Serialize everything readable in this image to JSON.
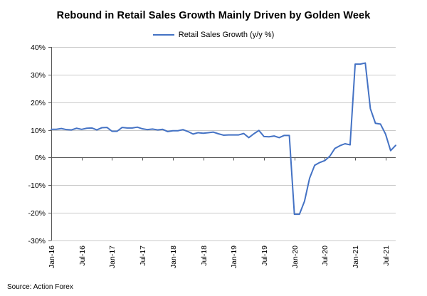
{
  "title": "Rebound in Retail Sales Growth Mainly Driven by Golden Week",
  "legend": {
    "label": "Retail Sales Growth (y/y %)"
  },
  "source": "Source: Action Forex",
  "chart_data": {
    "type": "line",
    "title": "Rebound in Retail Sales Growth Mainly Driven by Golden Week",
    "series_name": "Retail Sales Growth (y/y %)",
    "line_color": "#4472C4",
    "xlabel": "",
    "ylabel": "",
    "ylim": [
      -30,
      40
    ],
    "grid": true,
    "legend_position": "top-center",
    "y_ticks": [
      {
        "value": 40,
        "label": "40%"
      },
      {
        "value": 30,
        "label": "30%"
      },
      {
        "value": 20,
        "label": "20%"
      },
      {
        "value": 10,
        "label": "10%"
      },
      {
        "value": 0,
        "label": "0%"
      },
      {
        "value": -10,
        "label": "-10%"
      },
      {
        "value": -20,
        "label": "-20%"
      },
      {
        "value": -30,
        "label": "-30%"
      }
    ],
    "x_ticks": [
      {
        "index": 0,
        "label": "Jan-16"
      },
      {
        "index": 6,
        "label": "Jul-16"
      },
      {
        "index": 12,
        "label": "Jan-17"
      },
      {
        "index": 18,
        "label": "Jul-17"
      },
      {
        "index": 24,
        "label": "Jan-18"
      },
      {
        "index": 30,
        "label": "Jul-18"
      },
      {
        "index": 36,
        "label": "Jan-19"
      },
      {
        "index": 42,
        "label": "Jul-19"
      },
      {
        "index": 48,
        "label": "Jan-20"
      },
      {
        "index": 54,
        "label": "Jul-20"
      },
      {
        "index": 60,
        "label": "Jan-21"
      },
      {
        "index": 66,
        "label": "Jul-21"
      }
    ],
    "x": [
      "Jan-16",
      "Feb-16",
      "Mar-16",
      "Apr-16",
      "May-16",
      "Jun-16",
      "Jul-16",
      "Aug-16",
      "Sep-16",
      "Oct-16",
      "Nov-16",
      "Dec-16",
      "Jan-17",
      "Feb-17",
      "Mar-17",
      "Apr-17",
      "May-17",
      "Jun-17",
      "Jul-17",
      "Aug-17",
      "Sep-17",
      "Oct-17",
      "Nov-17",
      "Dec-17",
      "Jan-18",
      "Feb-18",
      "Mar-18",
      "Apr-18",
      "May-18",
      "Jun-18",
      "Jul-18",
      "Aug-18",
      "Sep-18",
      "Oct-18",
      "Nov-18",
      "Dec-18",
      "Jan-19",
      "Feb-19",
      "Mar-19",
      "Apr-19",
      "May-19",
      "Jun-19",
      "Jul-19",
      "Aug-19",
      "Sep-19",
      "Oct-19",
      "Nov-19",
      "Dec-19",
      "Jan-20",
      "Feb-20",
      "Mar-20",
      "Apr-20",
      "May-20",
      "Jun-20",
      "Jul-20",
      "Aug-20",
      "Sep-20",
      "Oct-20",
      "Nov-20",
      "Dec-20",
      "Jan-21",
      "Feb-21",
      "Mar-21",
      "Apr-21",
      "May-21",
      "Jun-21",
      "Jul-21",
      "Aug-21",
      "Sep-21"
    ],
    "values": [
      10.2,
      10.2,
      10.5,
      10.1,
      10.0,
      10.6,
      10.2,
      10.6,
      10.7,
      10.0,
      10.8,
      10.9,
      9.5,
      9.5,
      10.9,
      10.7,
      10.7,
      11.0,
      10.4,
      10.1,
      10.3,
      10.0,
      10.2,
      9.4,
      9.7,
      9.7,
      10.1,
      9.4,
      8.5,
      9.0,
      8.8,
      9.0,
      9.2,
      8.6,
      8.1,
      8.2,
      8.2,
      8.2,
      8.7,
      7.2,
      8.6,
      9.8,
      7.6,
      7.5,
      7.8,
      7.2,
      8.0,
      8.0,
      -20.5,
      -20.5,
      -15.8,
      -7.5,
      -2.8,
      -1.8,
      -1.1,
      0.5,
      3.3,
      4.3,
      5.0,
      4.6,
      33.8,
      33.8,
      34.2,
      17.7,
      12.4,
      12.1,
      8.5,
      2.5,
      4.4
    ]
  }
}
